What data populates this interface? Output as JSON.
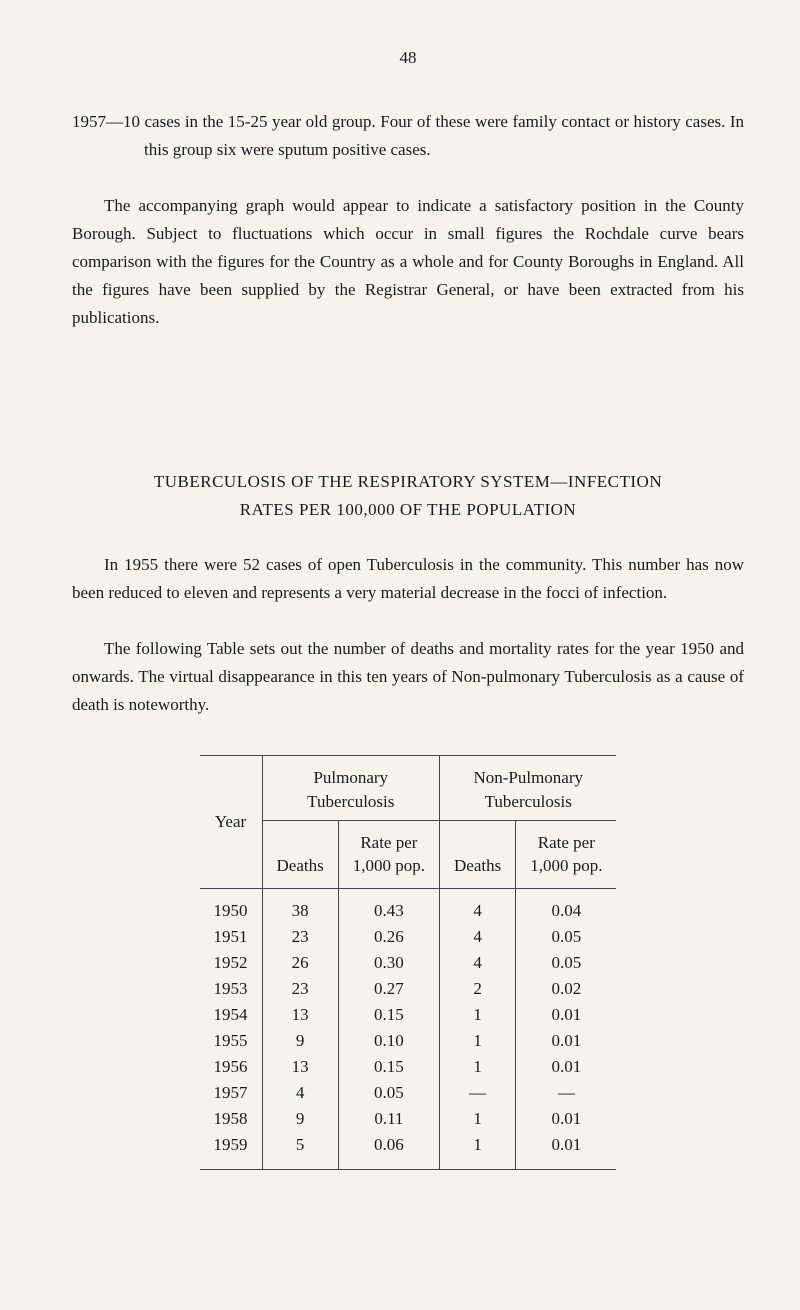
{
  "page_number": "48",
  "para1": "1957—10 cases in the 15-25 year old group.  Four of these were family contact or history cases.  In this group six were sputum positive cases.",
  "para2": "The accompanying graph would appear to indicate a satisfactory position in the County Borough.  Subject to fluctuations which occur in small figures the Rochdale curve bears comparison with the figures for the Country as a whole and for County Boroughs in England.  All the figures have been supplied by the Registrar General, or have been extracted from his publications.",
  "section_title_line1": "TUBERCULOSIS OF THE RESPIRATORY SYSTEM—INFECTION",
  "section_title_line2": "RATES PER 100,000 OF THE POPULATION",
  "para3": "In 1955 there were 52 cases of open Tuberculosis in the community.  This number has now been reduced to eleven and represents a very material decrease in the focci of infection.",
  "para4": "The following Table sets out the number of deaths and mortality rates for the year 1950 and onwards.  The virtual disappearance in this ten years of Non-pulmonary Tuberculosis as a cause of death is noteworthy.",
  "table": {
    "col_year": "Year",
    "group1": "Pulmonary\nTuberculosis",
    "group2": "Non-Pulmonary\nTuberculosis",
    "sub_deaths": "Deaths",
    "sub_rate": "Rate per\n1,000 pop.",
    "rows": [
      {
        "year": "1950",
        "d1": "38",
        "r1": "0.43",
        "d2": "4",
        "r2": "0.04"
      },
      {
        "year": "1951",
        "d1": "23",
        "r1": "0.26",
        "d2": "4",
        "r2": "0.05"
      },
      {
        "year": "1952",
        "d1": "26",
        "r1": "0.30",
        "d2": "4",
        "r2": "0.05"
      },
      {
        "year": "1953",
        "d1": "23",
        "r1": "0.27",
        "d2": "2",
        "r2": "0.02"
      },
      {
        "year": "1954",
        "d1": "13",
        "r1": "0.15",
        "d2": "1",
        "r2": "0.01"
      },
      {
        "year": "1955",
        "d1": "9",
        "r1": "0.10",
        "d2": "1",
        "r2": "0.01"
      },
      {
        "year": "1956",
        "d1": "13",
        "r1": "0.15",
        "d2": "1",
        "r2": "0.01"
      },
      {
        "year": "1957",
        "d1": "4",
        "r1": "0.05",
        "d2": "—",
        "r2": "—"
      },
      {
        "year": "1958",
        "d1": "9",
        "r1": "0.11",
        "d2": "1",
        "r2": "0.01"
      },
      {
        "year": "1959",
        "d1": "5",
        "r1": "0.06",
        "d2": "1",
        "r2": "0.01"
      }
    ]
  }
}
